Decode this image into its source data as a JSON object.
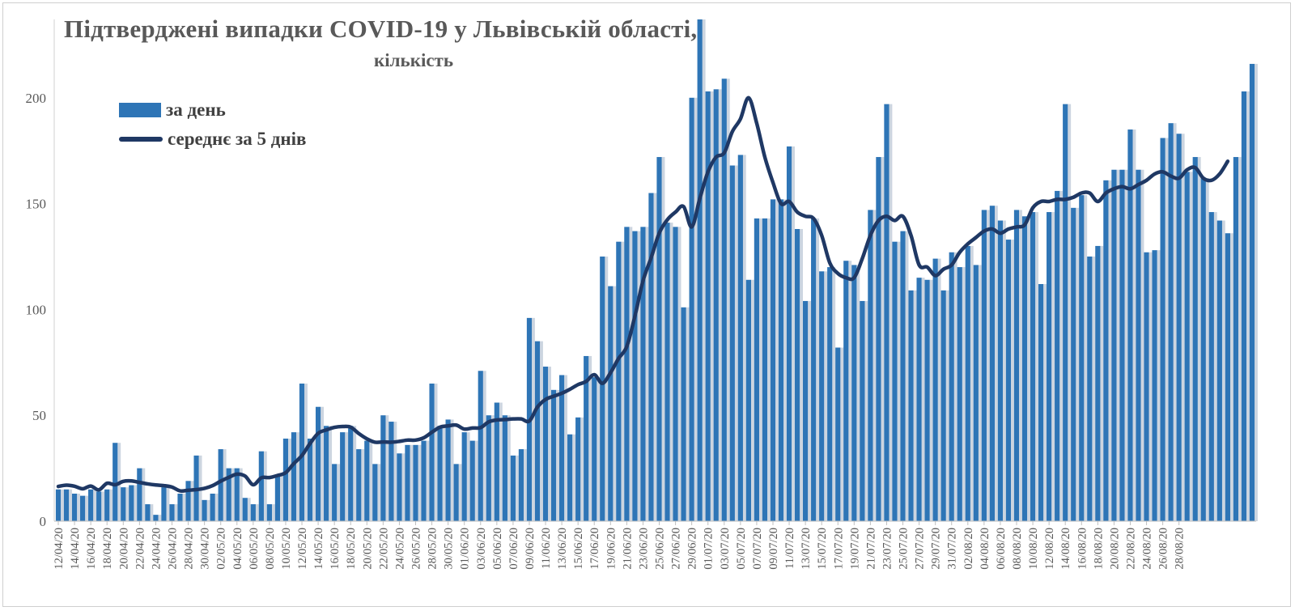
{
  "chart_data": {
    "type": "bar",
    "title": "Підтверджені випадки COVID-19 у Львівській області,",
    "subtitle": "кількість",
    "ylim": [
      0,
      237
    ],
    "y_ticks": [
      0,
      50,
      100,
      150,
      200
    ],
    "grid": false,
    "legend_placement": "top-left",
    "colors": {
      "bar": "#2e75b6",
      "line": "#1f3864"
    },
    "start_date": "2020-04-12",
    "tick_labels": [
      "12/04/20",
      "14/04/20",
      "16/04/20",
      "18/04/20",
      "20/04/20",
      "22/04/20",
      "24/04/20",
      "26/04/20",
      "28/04/20",
      "30/04/20",
      "02/05/20",
      "04/05/20",
      "06/05/20",
      "08/05/20",
      "10/05/20",
      "12/05/20",
      "14/05/20",
      "16/05/20",
      "18/05/20",
      "20/05/20",
      "22/05/20",
      "24/05/20",
      "26/05/20",
      "28/05/20",
      "30/05/20",
      "01/06/20",
      "03/06/20",
      "05/06/20",
      "07/06/20",
      "09/06/20",
      "11/06/20",
      "13/06/20",
      "15/06/20",
      "17/06/20",
      "19/06/20",
      "21/06/20",
      "23/06/20",
      "25/06/20",
      "27/06/20",
      "29/06/20",
      "01/07/20",
      "03/07/20",
      "05/07/20",
      "07/07/20",
      "09/07/20",
      "11/07/20",
      "13/07/20",
      "15/07/20",
      "17/07/20",
      "19/07/20",
      "21/07/20",
      "23/07/20",
      "25/07/20",
      "27/07/20",
      "29/07/20",
      "31/07/20",
      "02/08/20",
      "04/08/20",
      "06/08/20",
      "08/08/20",
      "10/08/20",
      "12/08/20",
      "14/08/20",
      "16/08/20",
      "18/08/20",
      "20/08/20",
      "22/08/20",
      "24/08/20",
      "26/08/20",
      "28/08/20"
    ],
    "series": [
      {
        "name": "за день",
        "type": "bar",
        "values": [
          15,
          15,
          13,
          12,
          15,
          14,
          15,
          37,
          16,
          17,
          25,
          8,
          3,
          16,
          8,
          13,
          19,
          31,
          10,
          13,
          34,
          25,
          25,
          11,
          8,
          33,
          8,
          22,
          39,
          42,
          65,
          39,
          54,
          45,
          27,
          42,
          45,
          34,
          38,
          27,
          50,
          47,
          32,
          36,
          36,
          38,
          65,
          45,
          48,
          27,
          42,
          38,
          71,
          50,
          56,
          50,
          31,
          34,
          96,
          85,
          73,
          62,
          69,
          41,
          49,
          78,
          68,
          125,
          111,
          132,
          139,
          137,
          139,
          155,
          172,
          141,
          139,
          101,
          200,
          237,
          203,
          204,
          209,
          168,
          173,
          114,
          143,
          143,
          152,
          152,
          177,
          138,
          104,
          143,
          118,
          120,
          82,
          123,
          121,
          104,
          147,
          172,
          197,
          132,
          137,
          109,
          115,
          114,
          124,
          109,
          127,
          120,
          130,
          121,
          147,
          149,
          142,
          133,
          147,
          144,
          146,
          112,
          146,
          156,
          197,
          148,
          154,
          125,
          130,
          161,
          166,
          166,
          185,
          166,
          127,
          128,
          181,
          188,
          183,
          165,
          172,
          162,
          146,
          142,
          136,
          172,
          203,
          216
        ]
      },
      {
        "name": "середнє за 5 днів",
        "type": "line",
        "values": [
          16.4,
          17.0,
          16.5,
          15.3,
          16.6,
          14.8,
          17.9,
          17.2,
          18.8,
          19.0,
          18.3,
          17.6,
          17.1,
          16.8,
          16.1,
          14.3,
          14.6,
          14.9,
          15.5,
          16.8,
          18.9,
          20.7,
          22.2,
          21.3,
          17.2,
          20.5,
          20.6,
          21.6,
          22.9,
          27.2,
          31.0,
          36.7,
          41.5,
          43.1,
          44.3,
          44.7,
          44.4,
          41.4,
          38.9,
          37.3,
          37.4,
          37.3,
          37.7,
          38.3,
          38.3,
          39.4,
          42.0,
          44.4,
          45.0,
          45.4,
          43.5,
          44.0,
          44.2,
          46.9,
          47.8,
          48.0,
          48.3,
          48.3,
          47.3,
          53.9,
          57.5,
          59.0,
          60.4,
          62.3,
          64.5,
          66.0,
          69.2,
          65.1,
          70.1,
          76.9,
          82.5,
          96.8,
          113.5,
          124.4,
          136.1,
          142.4,
          146.0,
          148.6,
          139.0,
          152.5,
          165.0,
          172.0,
          174.0,
          184.0,
          190.0,
          200.0,
          188.0,
          172.0,
          160.0,
          150.0,
          151.0,
          146.0,
          144.0,
          143.0,
          135.0,
          122.0,
          117.0,
          115.0,
          115.0,
          124.0,
          135.0,
          142.0,
          144.0,
          142.0,
          144.0,
          135.0,
          121.0,
          120.0,
          116.0,
          119.0,
          121.0,
          127.0,
          131.0,
          134.0,
          137.0,
          138.0,
          136.0,
          138.0,
          139.0,
          140.0,
          148.0,
          151.0,
          151.0,
          152.0,
          152.0,
          153.0,
          155.0,
          155.0,
          151.0,
          155.0,
          157.0,
          158.0,
          157.0,
          159.0,
          161.0,
          164.0,
          165.0,
          163.0,
          162.0,
          166.0,
          167.0,
          162.0,
          161.0,
          164.0,
          170.0
        ]
      }
    ]
  }
}
